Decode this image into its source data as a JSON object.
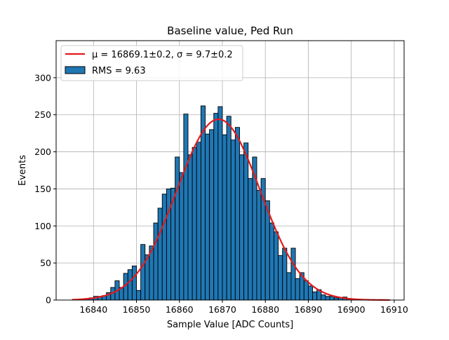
{
  "chart_data": {
    "type": "bar",
    "title": "Baseline value, Ped Run",
    "xlabel": "Sample Value [ADC Counts]",
    "ylabel": "Events",
    "xlim": [
      16831.3,
      16912.3
    ],
    "ylim": [
      0,
      350
    ],
    "xticks": [
      16840,
      16850,
      16860,
      16870,
      16880,
      16890,
      16900,
      16910
    ],
    "yticks": [
      0,
      50,
      100,
      150,
      200,
      250,
      300
    ],
    "grid": true,
    "legend_position": "top-left",
    "histogram": {
      "name": "RMS = 9.63",
      "bin_start": 16837,
      "bin_width": 1,
      "counts": [
        1,
        2,
        3,
        5,
        5,
        6,
        10,
        17,
        26,
        17,
        36,
        41,
        46,
        13,
        75,
        61,
        73,
        104,
        124,
        143,
        150,
        151,
        193,
        172,
        251,
        196,
        206,
        213,
        262,
        224,
        230,
        252,
        261,
        223,
        248,
        216,
        233,
        196,
        212,
        164,
        193,
        148,
        164,
        134,
        104,
        92,
        60,
        70,
        37,
        70,
        29,
        37,
        26,
        19,
        11,
        14,
        7,
        5,
        5,
        3,
        3,
        4,
        2,
        1
      ]
    },
    "fit": {
      "name": "μ = 16869.1±0.2, σ = 9.7±0.2",
      "mu": 16869.1,
      "sigma": 9.7,
      "peak": 244,
      "x_range": [
        16835,
        16909
      ]
    },
    "colors": {
      "bar_fill": "#1f77b4",
      "bar_edge": "#000000",
      "fit_line": "#e31a1c",
      "grid": "#b0b0b0"
    }
  }
}
